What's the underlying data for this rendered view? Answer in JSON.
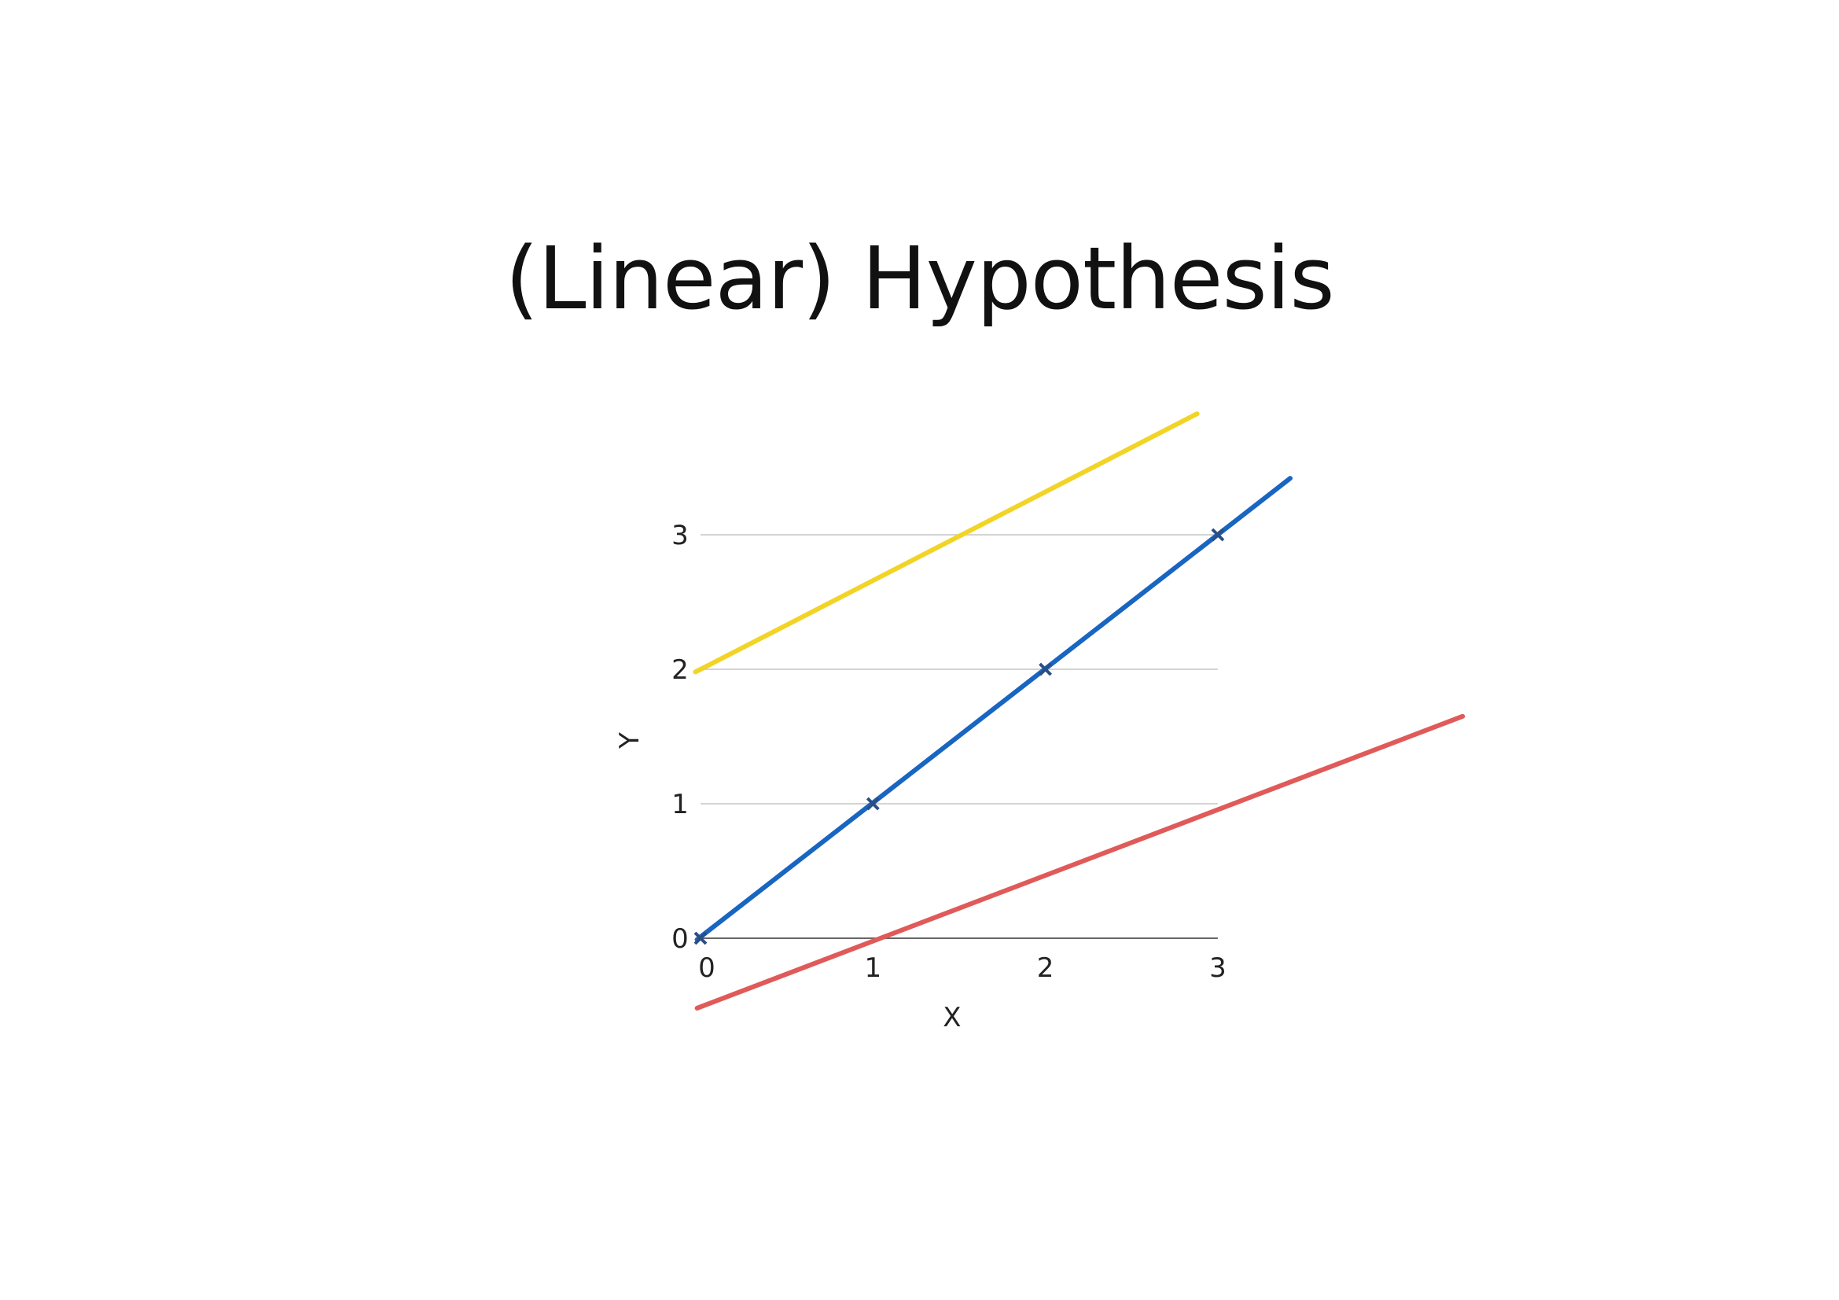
{
  "title": "(Linear) Hypothesis",
  "chart_data": {
    "type": "line",
    "xlabel": "X",
    "ylabel": "Y",
    "xlim": [
      0,
      3
    ],
    "ylim": [
      0,
      3
    ],
    "x_ticks": [
      "0",
      "1",
      "2",
      "3"
    ],
    "y_ticks": [
      "0",
      "1",
      "2",
      "3"
    ],
    "grid": "horizontal",
    "points": [
      {
        "x": 0,
        "y": 0
      },
      {
        "x": 1,
        "y": 1
      },
      {
        "x": 2,
        "y": 2
      },
      {
        "x": 3,
        "y": 3
      }
    ],
    "series": [
      {
        "color": "#f2d426",
        "x": [
          -0.03,
          2.88
        ],
        "y": [
          1.98,
          3.9
        ]
      },
      {
        "color": "#1865c2",
        "x": [
          -0.02,
          3.42
        ],
        "y": [
          -0.01,
          3.42
        ]
      },
      {
        "color": "#e05a5a",
        "x": [
          -0.02,
          4.42
        ],
        "y": [
          -0.52,
          1.65
        ]
      }
    ]
  }
}
